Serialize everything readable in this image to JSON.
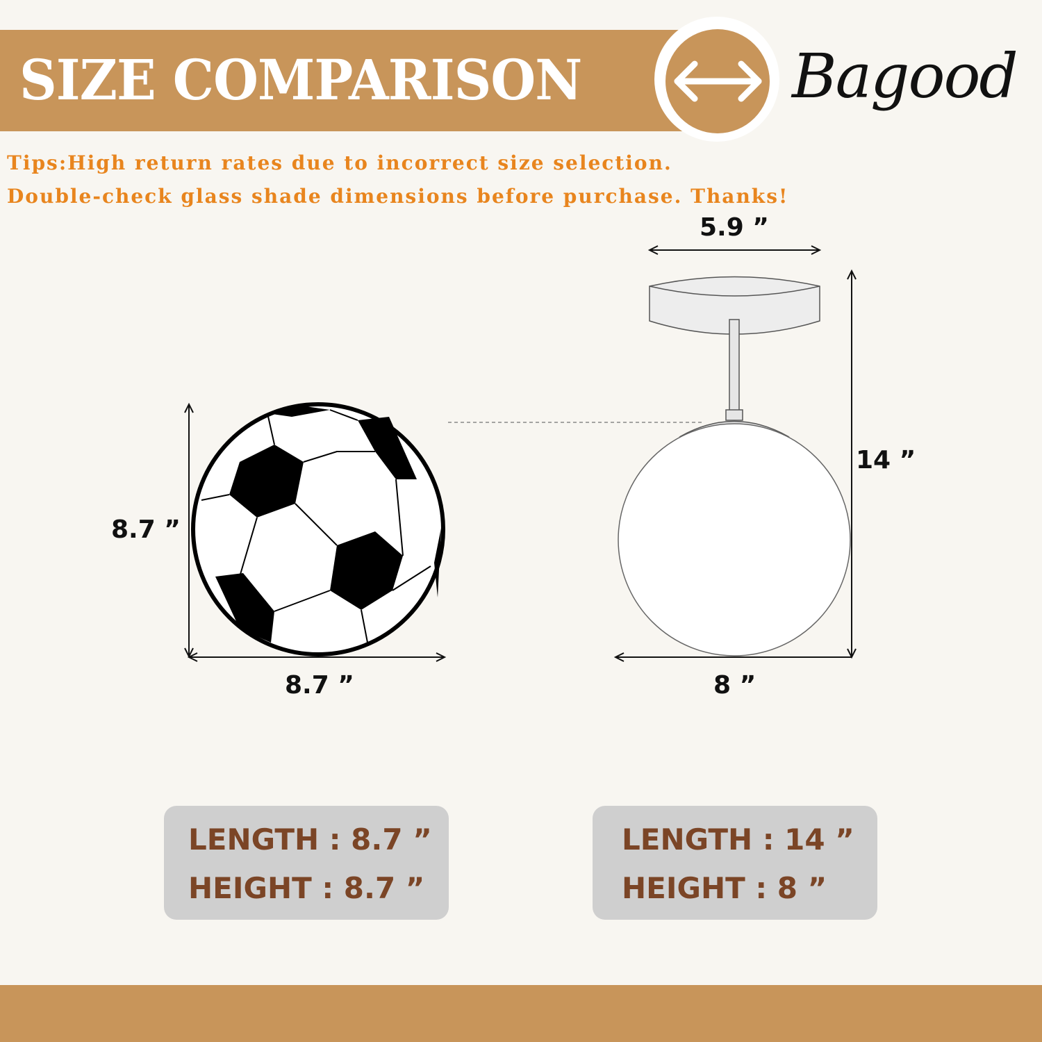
{
  "header": {
    "title": "SIZE COMPARISON",
    "icon": "left-right-arrow-icon",
    "brand": "Bagood"
  },
  "tips": {
    "line1": "Tips:High return rates due to incorrect size selection.",
    "line2": "Double-check glass shade dimensions before purchase. Thanks!"
  },
  "soccer_ball": {
    "height_label": "8.7 ”",
    "width_label": "8.7 ”",
    "length_text": "LENGTH : 8.7 ”",
    "height_text": "HEIGHT : 8.7 ”"
  },
  "lamp": {
    "canopy_label": "5.9 ”",
    "height_label": "14 ”",
    "width_label": "8 ”",
    "length_text": "LENGTH : 14 ”",
    "height_text": "HEIGHT : 8 ”"
  },
  "colors": {
    "banner": "#c8955a",
    "tips_text": "#e8851e",
    "spec_text": "#7b4526",
    "spec_box": "#cfcfcf",
    "background": "#f8f6f1"
  }
}
